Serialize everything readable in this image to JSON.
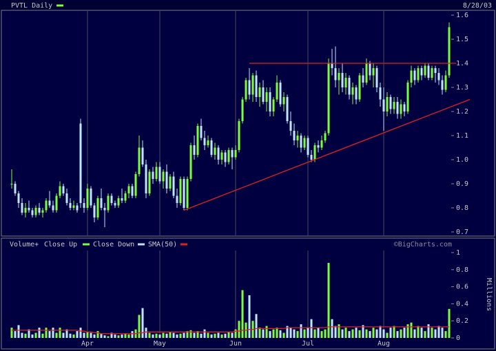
{
  "chart_data": {
    "type": "candlestick",
    "title": "PVTL Daily",
    "date": "8/28/03",
    "up_label": "Close Up",
    "down_label": "Close Down",
    "up_color": "#7cff3a",
    "down_color": "#bfe6ff",
    "categories": [
      null,
      null,
      null,
      null,
      null,
      null,
      null,
      null,
      null,
      null,
      null,
      null,
      null,
      null,
      null,
      null,
      null,
      null,
      null,
      null,
      null,
      null,
      "Apr",
      null,
      null,
      null,
      null,
      null,
      null,
      null,
      null,
      null,
      null,
      null,
      null,
      null,
      null,
      null,
      null,
      null,
      null,
      null,
      null,
      "May",
      null,
      null,
      null,
      null,
      null,
      null,
      null,
      null,
      null,
      null,
      null,
      null,
      null,
      null,
      null,
      null,
      null,
      null,
      null,
      null,
      null,
      "Jun",
      null,
      null,
      null,
      null,
      null,
      null,
      null,
      null,
      null,
      null,
      null,
      null,
      null,
      null,
      null,
      null,
      null,
      null,
      null,
      null,
      "Jul",
      null,
      null,
      null,
      null,
      null,
      null,
      null,
      null,
      null,
      null,
      null,
      null,
      null,
      null,
      null,
      null,
      null,
      null,
      null,
      null,
      null,
      "Aug",
      null,
      null,
      null,
      null,
      null,
      null,
      null,
      null,
      null,
      null,
      null,
      null,
      null,
      null,
      null,
      null,
      null,
      null,
      null
    ],
    "ohlc": [
      [
        0.9,
        0.96,
        0.88,
        0.9
      ],
      [
        0.9,
        0.91,
        0.85,
        0.86
      ],
      [
        0.86,
        0.87,
        0.8,
        0.82
      ],
      [
        0.82,
        0.84,
        0.77,
        0.78
      ],
      [
        0.78,
        0.82,
        0.76,
        0.8
      ],
      [
        0.8,
        0.83,
        0.78,
        0.79
      ],
      [
        0.79,
        0.8,
        0.76,
        0.77
      ],
      [
        0.77,
        0.81,
        0.76,
        0.8
      ],
      [
        0.8,
        0.82,
        0.77,
        0.78
      ],
      [
        0.78,
        0.8,
        0.76,
        0.79
      ],
      [
        0.79,
        0.84,
        0.78,
        0.83
      ],
      [
        0.83,
        0.87,
        0.8,
        0.81
      ],
      [
        0.81,
        0.83,
        0.78,
        0.79
      ],
      [
        0.79,
        0.86,
        0.78,
        0.85
      ],
      [
        0.85,
        0.91,
        0.84,
        0.89
      ],
      [
        0.89,
        0.9,
        0.85,
        0.86
      ],
      [
        0.86,
        0.88,
        0.81,
        0.82
      ],
      [
        0.82,
        0.84,
        0.79,
        0.8
      ],
      [
        0.8,
        0.83,
        0.79,
        0.81
      ],
      [
        0.81,
        0.82,
        0.78,
        0.79
      ],
      [
        1.15,
        1.17,
        0.8,
        0.82
      ],
      [
        0.82,
        0.84,
        0.78,
        0.8
      ],
      [
        0.8,
        0.9,
        0.79,
        0.88
      ],
      [
        0.88,
        0.89,
        0.8,
        0.81
      ],
      [
        0.81,
        0.82,
        0.74,
        0.76
      ],
      [
        0.76,
        0.85,
        0.75,
        0.84
      ],
      [
        0.84,
        0.88,
        0.79,
        0.8
      ],
      [
        0.8,
        0.82,
        0.72,
        0.79
      ],
      [
        0.79,
        0.86,
        0.78,
        0.85
      ],
      [
        0.85,
        0.86,
        0.81,
        0.82
      ],
      [
        0.82,
        0.83,
        0.8,
        0.81
      ],
      [
        0.81,
        0.85,
        0.8,
        0.84
      ],
      [
        0.84,
        0.88,
        0.82,
        0.83
      ],
      [
        0.83,
        0.87,
        0.82,
        0.86
      ],
      [
        0.86,
        0.9,
        0.84,
        0.89
      ],
      [
        0.89,
        0.9,
        0.84,
        0.85
      ],
      [
        0.85,
        0.95,
        0.84,
        0.94
      ],
      [
        0.94,
        1.1,
        0.93,
        1.05
      ],
      [
        1.05,
        1.08,
        0.97,
        0.98
      ],
      [
        0.98,
        1.0,
        0.84,
        0.86
      ],
      [
        0.86,
        0.96,
        0.85,
        0.95
      ],
      [
        0.95,
        0.97,
        0.9,
        0.92
      ],
      [
        0.92,
        0.99,
        0.91,
        0.97
      ],
      [
        0.97,
        0.99,
        0.9,
        0.91
      ],
      [
        0.91,
        0.96,
        0.88,
        0.95
      ],
      [
        0.95,
        0.98,
        0.86,
        0.88
      ],
      [
        0.88,
        0.94,
        0.87,
        0.93
      ],
      [
        0.93,
        0.95,
        0.84,
        0.85
      ],
      [
        0.85,
        0.88,
        0.8,
        0.82
      ],
      [
        0.82,
        0.93,
        0.81,
        0.92
      ],
      [
        0.92,
        0.93,
        0.79,
        0.8
      ],
      [
        0.8,
        0.93,
        0.79,
        0.92
      ],
      [
        0.92,
        1.07,
        0.91,
        1.06
      ],
      [
        1.06,
        1.1,
        1.0,
        1.02
      ],
      [
        1.02,
        1.15,
        1.01,
        1.14
      ],
      [
        1.14,
        1.17,
        1.08,
        1.09
      ],
      [
        1.09,
        1.12,
        1.04,
        1.06
      ],
      [
        1.06,
        1.1,
        1.05,
        1.08
      ],
      [
        1.08,
        1.09,
        1.01,
        1.02
      ],
      [
        1.02,
        1.07,
        1.0,
        1.05
      ],
      [
        1.05,
        1.06,
        0.98,
        1.0
      ],
      [
        1.0,
        1.04,
        0.98,
        1.03
      ],
      [
        1.03,
        1.04,
        0.97,
        0.99
      ],
      [
        0.99,
        1.05,
        0.98,
        1.04
      ],
      [
        1.04,
        1.05,
        0.96,
        1.01
      ],
      [
        1.01,
        1.06,
        1.0,
        1.04
      ],
      [
        1.04,
        1.17,
        1.03,
        1.16
      ],
      [
        1.16,
        1.26,
        1.15,
        1.25
      ],
      [
        1.25,
        1.34,
        1.24,
        1.33
      ],
      [
        1.33,
        1.38,
        1.25,
        1.27
      ],
      [
        1.27,
        1.36,
        1.24,
        1.35
      ],
      [
        1.35,
        1.37,
        1.24,
        1.26
      ],
      [
        1.26,
        1.32,
        1.22,
        1.3
      ],
      [
        1.3,
        1.33,
        1.23,
        1.24
      ],
      [
        1.24,
        1.3,
        1.2,
        1.28
      ],
      [
        1.28,
        1.3,
        1.18,
        1.2
      ],
      [
        1.2,
        1.26,
        1.18,
        1.25
      ],
      [
        1.25,
        1.35,
        1.24,
        1.32
      ],
      [
        1.32,
        1.33,
        1.22,
        1.23
      ],
      [
        1.23,
        1.28,
        1.2,
        1.26
      ],
      [
        1.26,
        1.27,
        1.15,
        1.16
      ],
      [
        1.16,
        1.2,
        1.1,
        1.12
      ],
      [
        1.12,
        1.15,
        1.06,
        1.08
      ],
      [
        1.08,
        1.12,
        1.05,
        1.1
      ],
      [
        1.1,
        1.11,
        1.03,
        1.05
      ],
      [
        1.05,
        1.1,
        1.04,
        1.09
      ],
      [
        1.09,
        1.1,
        1.01,
        1.02
      ],
      [
        1.02,
        1.04,
        0.99,
        1.0
      ],
      [
        1.0,
        1.07,
        0.99,
        1.06
      ],
      [
        1.06,
        1.08,
        1.03,
        1.05
      ],
      [
        1.05,
        1.1,
        1.04,
        1.08
      ],
      [
        1.08,
        1.12,
        1.07,
        1.11
      ],
      [
        1.11,
        1.42,
        1.1,
        1.4
      ],
      [
        1.4,
        1.46,
        1.35,
        1.38
      ],
      [
        1.38,
        1.47,
        1.3,
        1.33
      ],
      [
        1.33,
        1.38,
        1.27,
        1.36
      ],
      [
        1.36,
        1.4,
        1.28,
        1.3
      ],
      [
        1.3,
        1.36,
        1.27,
        1.34
      ],
      [
        1.34,
        1.35,
        1.25,
        1.27
      ],
      [
        1.27,
        1.32,
        1.23,
        1.3
      ],
      [
        1.3,
        1.31,
        1.23,
        1.25
      ],
      [
        1.25,
        1.36,
        1.24,
        1.35
      ],
      [
        1.35,
        1.38,
        1.3,
        1.32
      ],
      [
        1.32,
        1.42,
        1.31,
        1.4
      ],
      [
        1.4,
        1.41,
        1.33,
        1.35
      ],
      [
        1.35,
        1.4,
        1.3,
        1.38
      ],
      [
        1.38,
        1.39,
        1.28,
        1.3
      ],
      [
        1.3,
        1.32,
        1.22,
        1.25
      ],
      [
        1.25,
        1.3,
        1.12,
        1.2
      ],
      [
        1.2,
        1.28,
        1.18,
        1.26
      ],
      [
        1.26,
        1.27,
        1.19,
        1.21
      ],
      [
        1.21,
        1.26,
        1.19,
        1.24
      ],
      [
        1.24,
        1.26,
        1.17,
        1.19
      ],
      [
        1.19,
        1.25,
        1.17,
        1.23
      ],
      [
        1.23,
        1.24,
        1.18,
        1.2
      ],
      [
        1.2,
        1.33,
        1.19,
        1.32
      ],
      [
        1.32,
        1.39,
        1.3,
        1.37
      ],
      [
        1.37,
        1.38,
        1.31,
        1.33
      ],
      [
        1.33,
        1.39,
        1.32,
        1.38
      ],
      [
        1.38,
        1.39,
        1.33,
        1.35
      ],
      [
        1.35,
        1.4,
        1.34,
        1.39
      ],
      [
        1.39,
        1.4,
        1.33,
        1.34
      ],
      [
        1.34,
        1.39,
        1.33,
        1.38
      ],
      [
        1.38,
        1.39,
        1.32,
        1.36
      ],
      [
        1.36,
        1.38,
        1.31,
        1.33
      ],
      [
        1.33,
        1.35,
        1.27,
        1.29
      ],
      [
        1.29,
        1.37,
        1.28,
        1.35
      ],
      [
        1.35,
        1.57,
        1.34,
        1.55
      ]
    ],
    "ylim": [
      0.7,
      1.6
    ],
    "yticks": [
      0.7,
      0.8,
      0.9,
      {
        "value": 1,
        "label": "1.0"
      },
      1.1,
      1.2,
      1.3,
      1.4,
      1.5,
      1.6
    ],
    "trendline_color": "#e02020",
    "trendlines": [
      {
        "start": [
          69,
          1.4
        ],
        "end": [
          129,
          1.4
        ]
      },
      {
        "start": [
          50,
          0.79
        ],
        "end": [
          133,
          1.25
        ]
      }
    ],
    "volume": {
      "title": "Volume+",
      "ylabel": "Millions",
      "ylim": [
        0,
        1
      ],
      "yticks": [
        0,
        0.2,
        0.4,
        0.6,
        0.8,
        1
      ],
      "values": [
        0.12,
        0.08,
        0.15,
        0.06,
        0.05,
        0.1,
        0.04,
        0.06,
        0.12,
        0.05,
        0.12,
        0.08,
        0.12,
        0.06,
        0.12,
        0.06,
        0.1,
        0.05,
        0.04,
        0.08,
        0.12,
        0.06,
        0.07,
        0.06,
        0.04,
        0.08,
        0.05,
        0.03,
        0.02,
        0.06,
        0.04,
        0.03,
        0.04,
        0.05,
        0.04,
        0.08,
        0.1,
        0.27,
        0.35,
        0.12,
        0.06,
        0.04,
        0.05,
        0.04,
        0.06,
        0.05,
        0.07,
        0.06,
        0.04,
        0.05,
        0.06,
        0.08,
        0.09,
        0.06,
        0.08,
        0.05,
        0.1,
        0.06,
        0.04,
        0.05,
        0.06,
        0.04,
        0.05,
        0.07,
        0.06,
        0.1,
        0.2,
        0.56,
        0.18,
        0.5,
        0.2,
        0.28,
        0.12,
        0.1,
        0.14,
        0.08,
        0.1,
        0.12,
        0.09,
        0.06,
        0.14,
        0.12,
        0.1,
        0.08,
        0.16,
        0.1,
        0.12,
        0.22,
        0.1,
        0.12,
        0.08,
        0.1,
        0.88,
        0.22,
        0.14,
        0.16,
        0.1,
        0.12,
        0.08,
        0.1,
        0.12,
        0.09,
        0.15,
        0.1,
        0.08,
        0.12,
        0.1,
        0.14,
        0.1,
        0.06,
        0.12,
        0.14,
        0.08,
        0.1,
        0.12,
        0.16,
        0.18,
        0.1,
        0.14,
        0.12,
        0.08,
        0.16,
        0.12,
        0.1,
        0.14,
        0.12,
        0.08,
        0.34
      ],
      "sma": {
        "name": "SMA(50)",
        "color": "#e02020",
        "values": [
          0.09,
          0.09,
          0.09,
          0.09,
          0.09,
          0.09,
          0.09,
          0.09,
          0.09,
          0.09,
          0.09,
          0.09,
          0.09,
          0.09,
          0.09,
          0.09,
          0.09,
          0.09,
          0.09,
          0.09,
          0.08,
          0.08,
          0.07,
          0.07,
          0.06,
          0.06,
          0.05,
          0.05,
          0.05,
          0.05,
          0.05,
          0.05,
          0.05,
          0.05,
          0.05,
          0.05,
          0.05,
          0.06,
          0.06,
          0.07,
          0.07,
          0.07,
          0.07,
          0.07,
          0.07,
          0.07,
          0.07,
          0.07,
          0.07,
          0.07,
          0.07,
          0.07,
          0.07,
          0.07,
          0.07,
          0.07,
          0.07,
          0.07,
          0.07,
          0.07,
          0.07,
          0.07,
          0.07,
          0.07,
          0.07,
          0.08,
          0.08,
          0.09,
          0.09,
          0.1,
          0.1,
          0.11,
          0.11,
          0.11,
          0.11,
          0.11,
          0.11,
          0.11,
          0.11,
          0.11,
          0.12,
          0.12,
          0.12,
          0.12,
          0.12,
          0.12,
          0.12,
          0.12,
          0.12,
          0.12,
          0.12,
          0.12,
          0.13,
          0.13,
          0.13,
          0.13,
          0.13,
          0.13,
          0.13,
          0.13,
          0.13,
          0.13,
          0.13,
          0.13,
          0.13,
          0.13,
          0.13,
          0.13,
          0.13,
          0.13,
          0.13,
          0.13,
          0.13,
          0.13,
          0.13,
          0.13,
          0.13,
          0.13,
          0.13,
          0.13,
          0.13,
          0.13,
          0.13,
          0.13,
          0.13,
          0.13,
          0.13,
          0.13
        ]
      }
    },
    "source": "©BigCharts.com"
  }
}
